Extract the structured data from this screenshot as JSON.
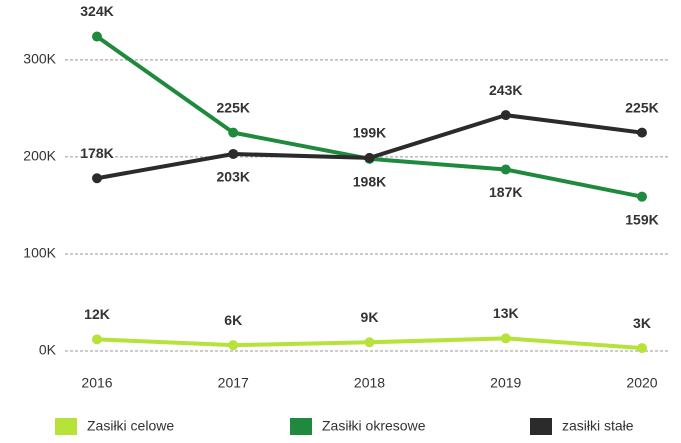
{
  "chart_data": {
    "type": "line",
    "categories": [
      "2016",
      "2017",
      "2018",
      "2019",
      "2020"
    ],
    "series": [
      {
        "name": "Zasiłki celowe",
        "color": "#b6e23a",
        "values": [
          12000,
          6000,
          9000,
          13000,
          3000
        ],
        "value_labels": [
          "12K",
          "6K",
          "9K",
          "13K",
          "3K"
        ]
      },
      {
        "name": "Zasiłki okresowe",
        "color": "#1f8a3e",
        "values": [
          324000,
          225000,
          198000,
          187000,
          159000
        ],
        "value_labels": [
          "324K",
          "225K",
          "198K",
          "187K",
          "159K"
        ]
      },
      {
        "name": "zasiłki stałe",
        "color": "#2b2b2b",
        "values": [
          178000,
          203000,
          199000,
          243000,
          225000
        ],
        "value_labels": [
          "178K",
          "203K",
          "199K",
          "243K",
          "225K"
        ]
      }
    ],
    "ylim": [
      0,
      340000
    ],
    "yticks": [
      {
        "value": 0,
        "label": "0K"
      },
      {
        "value": 100000,
        "label": "100K"
      },
      {
        "value": 200000,
        "label": "200K"
      },
      {
        "value": 300000,
        "label": "300K"
      }
    ],
    "grid": true
  }
}
